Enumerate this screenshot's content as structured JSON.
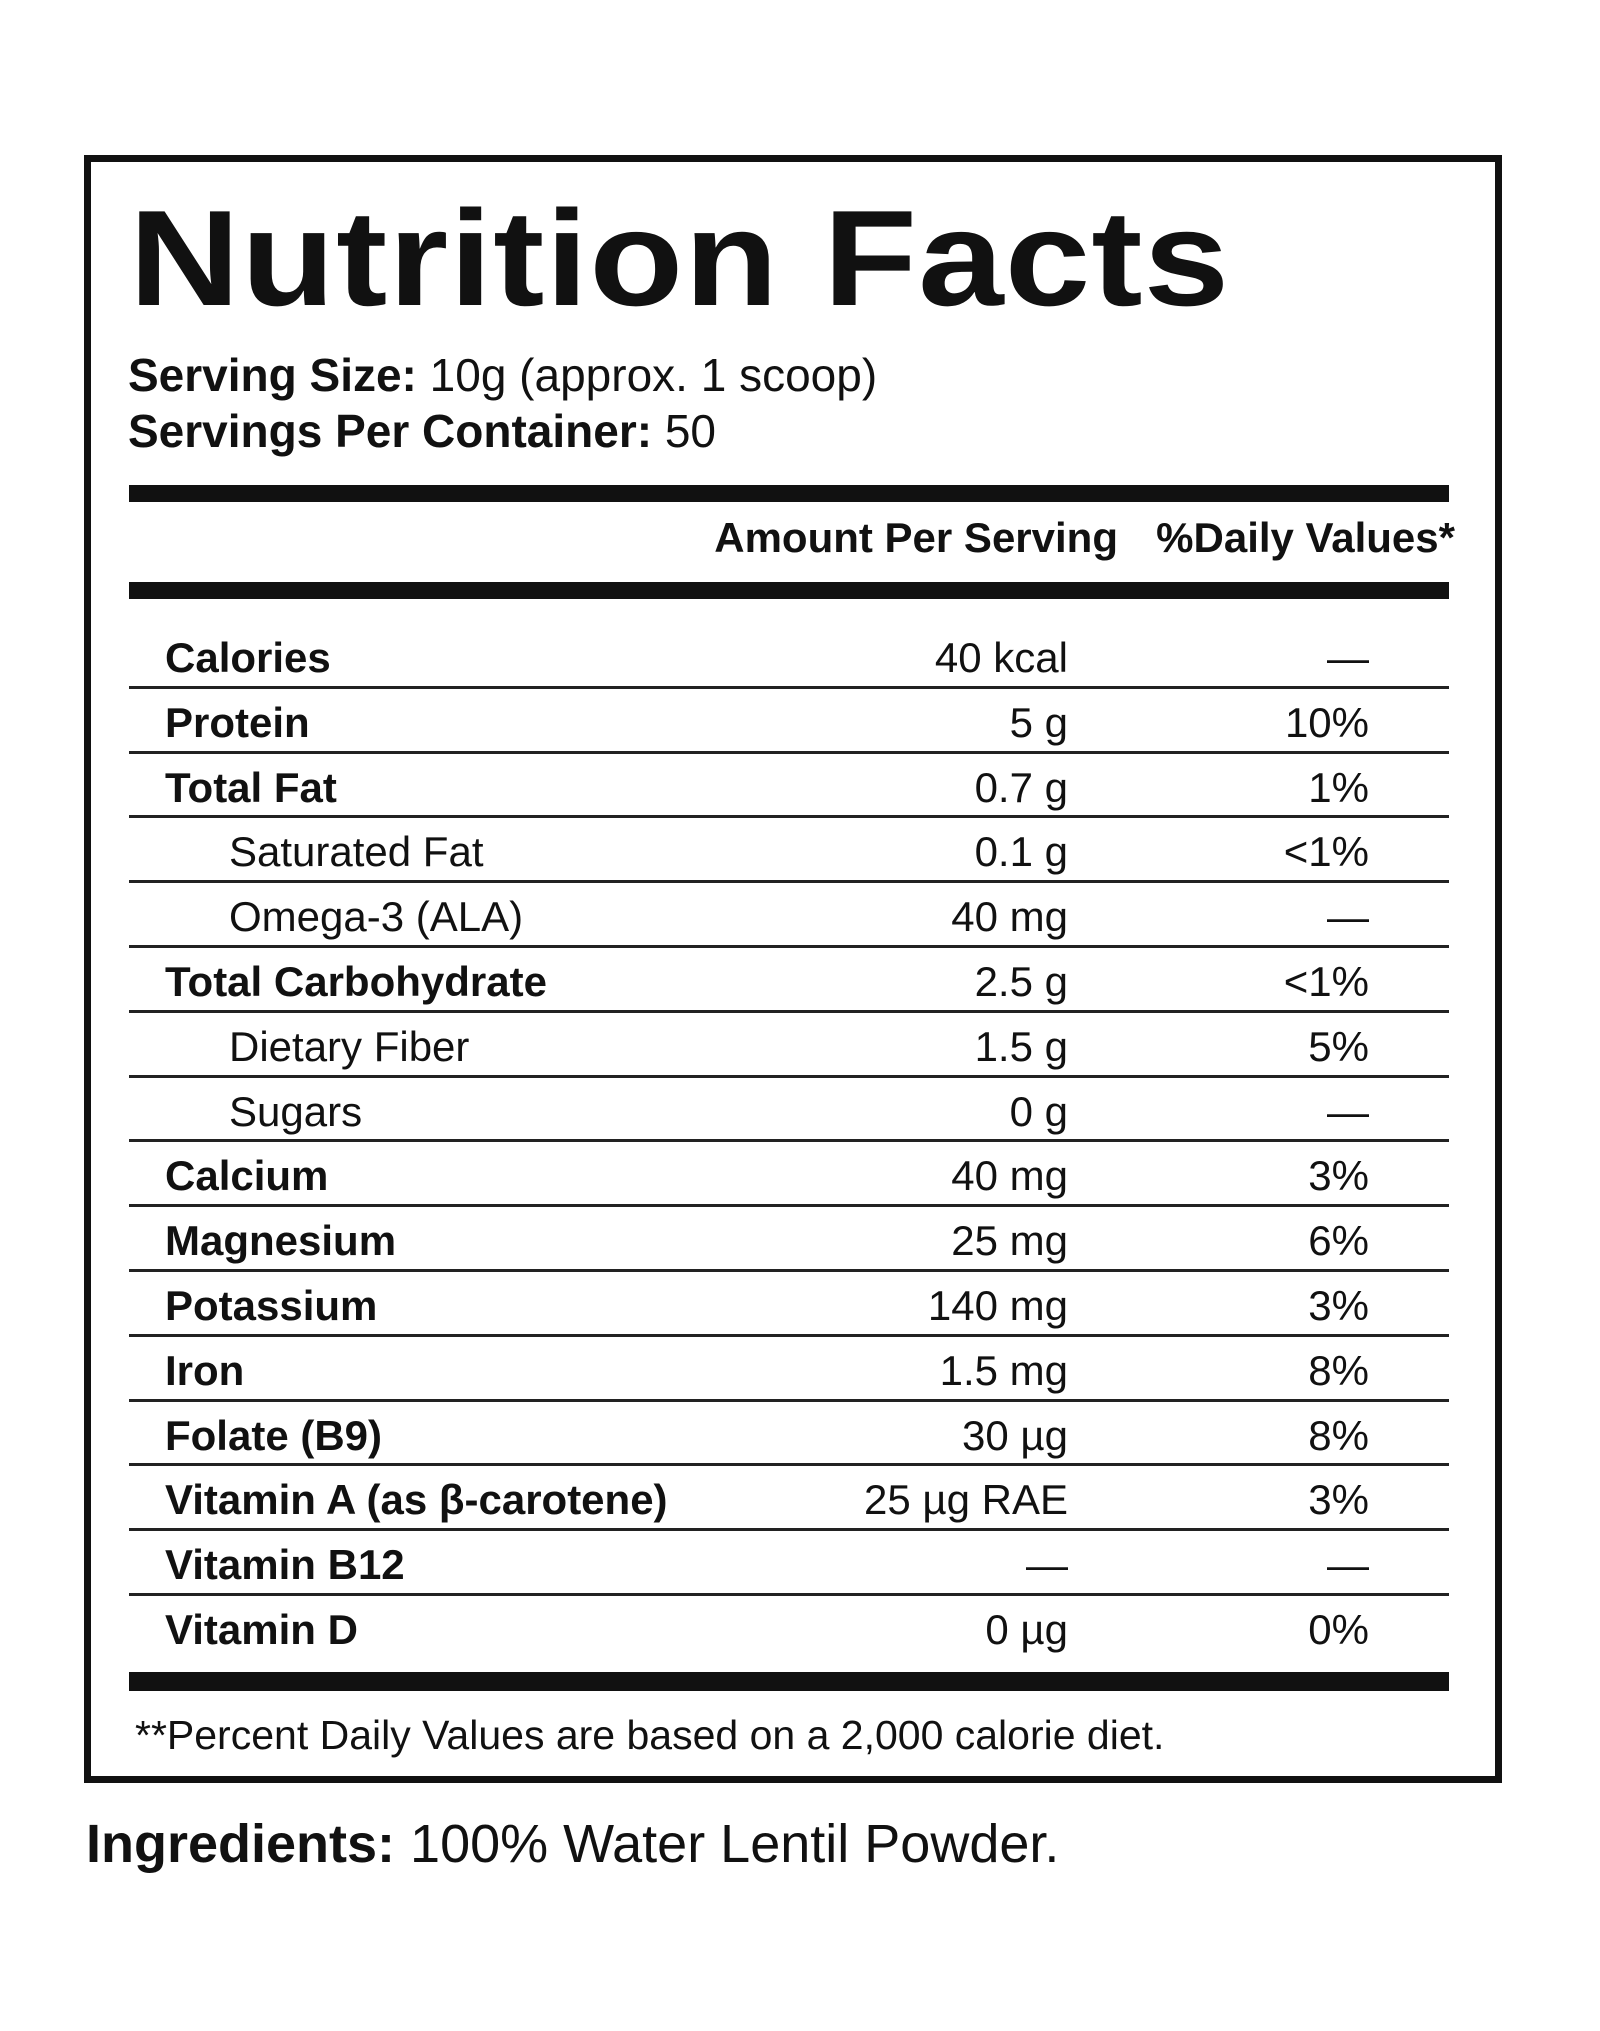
{
  "label": {
    "title": "Nutrition Facts",
    "serving_size_label": "Serving Size:",
    "serving_size_value": "10g (approx. 1 scoop)",
    "servings_per_container_label": "Servings Per Container:",
    "servings_per_container_value": "50",
    "header_amount": "Amount Per Serving",
    "header_daily_values": "%Daily Values*",
    "rows": [
      {
        "name": "Calories",
        "amount": "40 kcal",
        "dv": "—",
        "sub": false
      },
      {
        "name": "Protein",
        "amount": "5 g",
        "dv": "10%",
        "sub": false
      },
      {
        "name": "Total Fat",
        "amount": "0.7 g",
        "dv": "1%",
        "sub": false
      },
      {
        "name": "Saturated Fat",
        "amount": "0.1 g",
        "dv": "<1%",
        "sub": true
      },
      {
        "name": "Omega-3 (ALA)",
        "amount": "40 mg",
        "dv": "—",
        "sub": true
      },
      {
        "name": "Total Carbohydrate",
        "amount": "2.5 g",
        "dv": "<1%",
        "sub": false
      },
      {
        "name": "Dietary Fiber",
        "amount": "1.5 g",
        "dv": "5%",
        "sub": true
      },
      {
        "name": "Sugars",
        "amount": "0 g",
        "dv": "—",
        "sub": true
      },
      {
        "name": "Calcium",
        "amount": "40 mg",
        "dv": "3%",
        "sub": false
      },
      {
        "name": "Magnesium",
        "amount": "25 mg",
        "dv": "6%",
        "sub": false
      },
      {
        "name": "Potassium",
        "amount": "140 mg",
        "dv": "3%",
        "sub": false
      },
      {
        "name": "Iron",
        "amount": "1.5 mg",
        "dv": "8%",
        "sub": false
      },
      {
        "name": "Folate (B9)",
        "amount": "30 µg",
        "dv": "8%",
        "sub": false
      },
      {
        "name": "Vitamin A (as β-carotene)",
        "amount": "25 µg RAE",
        "dv": "3%",
        "sub": false
      },
      {
        "name": "Vitamin B12",
        "amount": "—",
        "dv": "—",
        "sub": false
      },
      {
        "name": "Vitamin D",
        "amount": "0 µg",
        "dv": "0%",
        "sub": false
      }
    ],
    "footnote": "**Percent Daily Values are based on a 2,000 calorie diet."
  },
  "ingredients": {
    "label": "Ingredients:",
    "value": "100% Water Lentil Powder."
  }
}
